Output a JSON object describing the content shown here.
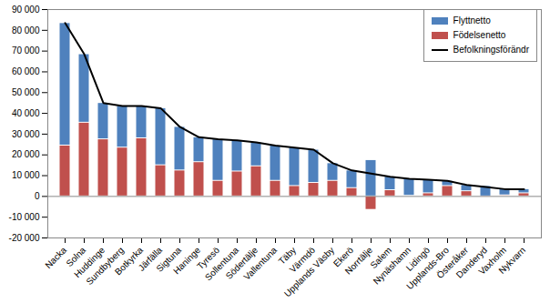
{
  "chart_data": {
    "type": "bar",
    "stacked": true,
    "legend": "top-right",
    "grid": false,
    "categories": [
      "Nacka",
      "Solna",
      "Huddinge",
      "Sundbyberg",
      "Botkyrka",
      "Järfälla",
      "Sigtuna",
      "Haninge",
      "Tyresö",
      "Sollentuna",
      "Södertälje",
      "Vallentuna",
      "Täby",
      "Värmdö",
      "Upplands Väsby",
      "Ekerö",
      "Norrtälje",
      "Salem",
      "Nynäshamn",
      "Lidingö",
      "Upplands-Bro",
      "Österåker",
      "Danderyd",
      "Vaxholm",
      "Nykvarn"
    ],
    "series": [
      {
        "name": "Flyttnetto",
        "type": "bar",
        "color": "#4f81bd",
        "values": [
          59000,
          33000,
          17500,
          20000,
          15500,
          27500,
          21000,
          12000,
          20000,
          15000,
          11500,
          17000,
          18500,
          16000,
          8500,
          8500,
          17500,
          6500,
          8200,
          6500,
          2500,
          3000,
          5000,
          3000,
          2000
        ]
      },
      {
        "name": "Födelsenetto",
        "type": "bar",
        "color": "#c0504d",
        "values": [
          24500,
          35500,
          27500,
          23500,
          28000,
          15000,
          12500,
          16500,
          7500,
          12000,
          14500,
          7500,
          5000,
          6500,
          7500,
          4000,
          -6500,
          3000,
          300,
          1500,
          5000,
          2500,
          -500,
          500,
          1500
        ]
      },
      {
        "name": "Befolkningsförändr",
        "type": "line",
        "color": "#000000",
        "values": [
          83500,
          68500,
          45000,
          43500,
          43500,
          42500,
          33500,
          28500,
          27500,
          27000,
          26000,
          24500,
          23500,
          22500,
          16000,
          12500,
          11000,
          9500,
          8500,
          8000,
          7500,
          5500,
          4500,
          3500,
          3500
        ]
      }
    ],
    "ylim": [
      -20000,
      90000
    ],
    "yticks": [
      {
        "value": -20000,
        "label": "-20 000"
      },
      {
        "value": -10000,
        "label": "-10 000"
      },
      {
        "value": 0,
        "label": "0"
      },
      {
        "value": 10000,
        "label": "10 000"
      },
      {
        "value": 20000,
        "label": "20 000"
      },
      {
        "value": 30000,
        "label": "30 000"
      },
      {
        "value": 40000,
        "label": "40 000"
      },
      {
        "value": 50000,
        "label": "50 000"
      },
      {
        "value": 60000,
        "label": "60 000"
      },
      {
        "value": 70000,
        "label": "70 000"
      },
      {
        "value": 80000,
        "label": "80 000"
      },
      {
        "value": 90000,
        "label": "90 000"
      }
    ]
  }
}
